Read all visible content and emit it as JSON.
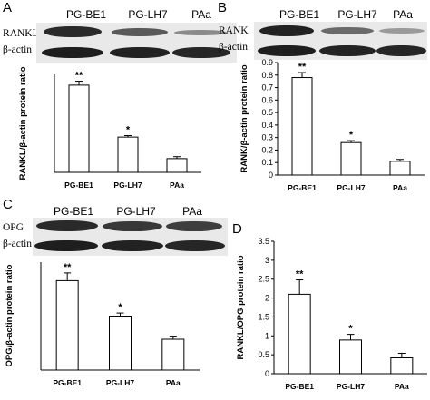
{
  "panels": [
    {
      "letter": "A",
      "lanes": [
        "PG-BE1",
        "PG-LH7",
        "PAa"
      ],
      "rows": [
        "RANKL",
        "β-actin"
      ],
      "chart_data": {
        "type": "bar",
        "categories": [
          "PG-BE1",
          "PG-LH7",
          "PAa"
        ],
        "values": [
          0.89,
          0.36,
          0.14
        ],
        "errors": [
          0.04,
          0.015,
          0.02
        ],
        "significance": [
          "**",
          "*",
          ""
        ],
        "ylabel": "RANKL/β-actin protein ratio",
        "ylim": [
          0,
          1.0
        ],
        "yticks": [],
        "xlabel": ""
      }
    },
    {
      "letter": "B",
      "lanes": [
        "PG-BE1",
        "PG-LH7",
        "PAa"
      ],
      "rows": [
        "RANK",
        "β-actin"
      ],
      "chart_data": {
        "type": "bar",
        "categories": [
          "PG-BE1",
          "PG-LH7",
          "PAa"
        ],
        "values": [
          0.78,
          0.26,
          0.11
        ],
        "errors": [
          0.04,
          0.015,
          0.015
        ],
        "significance": [
          "**",
          "*",
          ""
        ],
        "ylabel": "RANK/β-actin protein ratio",
        "ylim": [
          0,
          0.9
        ],
        "yticks": [
          "0",
          "0.1",
          "0.2",
          "0.3",
          "0.4",
          "0.5",
          "0.6",
          "0.7",
          "0.8",
          "0.9"
        ],
        "xlabel": ""
      }
    },
    {
      "letter": "C",
      "lanes": [
        "PG-BE1",
        "PG-LH7",
        "PAa"
      ],
      "rows": [
        "OPG",
        "β-actin"
      ],
      "chart_data": {
        "type": "bar",
        "categories": [
          "PG-BE1",
          "PG-LH7",
          "PAa"
        ],
        "values": [
          0.58,
          0.35,
          0.2
        ],
        "errors": [
          0.05,
          0.02,
          0.02
        ],
        "significance": [
          "**",
          "*",
          ""
        ],
        "ylabel": "OPG/β-actin protein ratio",
        "ylim": [
          0,
          0.7
        ],
        "yticks": [],
        "xlabel": ""
      }
    },
    {
      "letter": "D",
      "chart_data": {
        "type": "bar",
        "categories": [
          "PG-BE1",
          "PG-LH7",
          "PAa"
        ],
        "values": [
          2.1,
          0.89,
          0.42
        ],
        "errors": [
          0.38,
          0.15,
          0.12
        ],
        "significance": [
          "**",
          "*",
          ""
        ],
        "ylabel": "RANKL/OPG protein ratio",
        "ylim": [
          0,
          3.5
        ],
        "yticks": [
          "0",
          "0.5",
          "1",
          "1.5",
          "2",
          "2.5",
          "3",
          "3.5"
        ],
        "xlabel": ""
      }
    }
  ]
}
